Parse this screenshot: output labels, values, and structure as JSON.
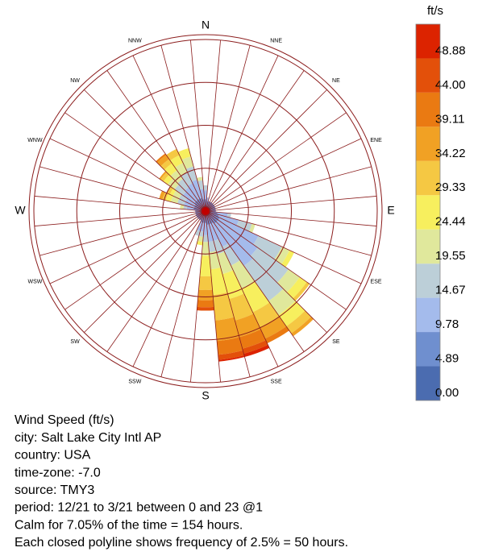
{
  "chart_data": {
    "type": "windrose",
    "directions": [
      "N",
      "NNE",
      "NE",
      "ENE",
      "E",
      "ESE",
      "SE",
      "SSE",
      "S",
      "SSW",
      "SW",
      "WSW",
      "W",
      "WNW",
      "NW",
      "NNW"
    ],
    "rlim": [
      0,
      10
    ],
    "rticks": [
      2.5,
      5,
      7.5,
      10
    ],
    "series": [
      {
        "color": "#4b6cb0",
        "values": [
          0.3,
          0.3,
          0.3,
          0.3,
          0.3,
          0.3,
          0.3,
          0.3,
          0.3,
          0.3,
          0.3,
          0.3,
          0.3,
          0.3,
          0.3,
          0.3,
          0.3,
          0.3,
          0.3,
          0.3,
          0.3,
          0.3,
          0.3,
          0.3,
          0.3,
          0.3,
          0.3,
          0.3,
          0.3,
          0.3,
          0.3,
          0.3,
          0.3,
          0.3,
          0.3,
          0.3
        ]
      },
      {
        "color": "#6f8fcf",
        "values": [
          0.4,
          0.3,
          0.3,
          0.3,
          0.3,
          0.3,
          0.3,
          0.3,
          0.3,
          0.3,
          0.4,
          0.5,
          0.6,
          0.6,
          0.6,
          0.5,
          0.5,
          0.5,
          0.4,
          0.4,
          0.4,
          0.3,
          0.3,
          0.3,
          0.3,
          0.3,
          0.3,
          0.3,
          0.4,
          0.4,
          0.4,
          0.5,
          0.5,
          0.5,
          0.5,
          0.4
        ]
      },
      {
        "color": "#a4bbec",
        "values": [
          0.5,
          0.2,
          0,
          0,
          0,
          0,
          0,
          0,
          0,
          0,
          0.6,
          1.2,
          2.5,
          2.8,
          3.0,
          1.5,
          1.0,
          1.0,
          0.7,
          0.5,
          0.5,
          0,
          0,
          0,
          0,
          0,
          0,
          0,
          0.4,
          0.6,
          0.6,
          0.8,
          0.9,
          1.0,
          1.1,
          0.6
        ]
      },
      {
        "color": "#bccfd8",
        "values": [
          0.3,
          0,
          0,
          0,
          0,
          0,
          0,
          0,
          0,
          0,
          0.2,
          0.8,
          1.5,
          2.2,
          2.5,
          1.2,
          0.8,
          0.6,
          0.4,
          0.3,
          0.3,
          0,
          0,
          0,
          0,
          0,
          0,
          0,
          0.2,
          0.4,
          0.4,
          0.6,
          0.6,
          0.7,
          0.8,
          0.5
        ]
      },
      {
        "color": "#e0e89c",
        "values": [
          0,
          0,
          0,
          0,
          0,
          0,
          0,
          0,
          0,
          0,
          0,
          0.2,
          0.5,
          0.8,
          1.0,
          1.5,
          1.2,
          1.0,
          0.8,
          0.3,
          0,
          0,
          0,
          0,
          0,
          0,
          0,
          0,
          0.2,
          0.4,
          0.4,
          0.5,
          0.6,
          0.6,
          0.6,
          0.2
        ]
      },
      {
        "color": "#f7ef5e",
        "values": [
          0,
          0,
          0,
          0,
          0,
          0,
          0,
          0,
          0,
          0,
          0,
          0,
          0.3,
          0.5,
          0.8,
          1.5,
          1.5,
          1.5,
          1.2,
          0.2,
          0,
          0,
          0,
          0,
          0,
          0,
          0,
          0,
          0,
          0.3,
          0.2,
          0.3,
          0.5,
          0.5,
          0.5,
          0
        ]
      },
      {
        "color": "#f5c843",
        "values": [
          0,
          0,
          0,
          0,
          0,
          0,
          0,
          0,
          0,
          0,
          0,
          0,
          0,
          0.2,
          0.5,
          1.0,
          1.3,
          1.5,
          0.8,
          0,
          0,
          0,
          0,
          0,
          0,
          0,
          0,
          0,
          0,
          0.2,
          0.2,
          0.2,
          0.3,
          0.4,
          0,
          0
        ]
      },
      {
        "color": "#f1a124",
        "values": [
          0,
          0,
          0,
          0,
          0,
          0,
          0,
          0,
          0,
          0,
          0,
          0,
          0,
          0,
          0.2,
          0.7,
          1.0,
          1.2,
          0.6,
          0,
          0,
          0,
          0,
          0,
          0,
          0,
          0,
          0,
          0,
          0.2,
          0,
          0.1,
          0.3,
          0,
          0,
          0
        ]
      },
      {
        "color": "#ea7a12",
        "values": [
          0,
          0,
          0,
          0,
          0,
          0,
          0,
          0,
          0,
          0,
          0,
          0,
          0,
          0,
          0,
          0.3,
          0.7,
          0.8,
          0.4,
          0,
          0,
          0,
          0,
          0,
          0,
          0,
          0,
          0,
          0,
          0,
          0,
          0,
          0.1,
          0,
          0,
          0
        ]
      },
      {
        "color": "#e3500a",
        "values": [
          0,
          0,
          0,
          0,
          0,
          0,
          0,
          0,
          0,
          0,
          0,
          0,
          0,
          0,
          0,
          0,
          0.3,
          0.3,
          0.2,
          0,
          0,
          0,
          0,
          0,
          0,
          0,
          0,
          0,
          0,
          0,
          0,
          0,
          0,
          0,
          0,
          0
        ]
      },
      {
        "color": "#dc2300",
        "values": [
          0,
          0,
          0,
          0,
          0,
          0,
          0,
          0,
          0,
          0,
          0,
          0,
          0,
          0,
          0,
          0,
          0.2,
          0.1,
          0,
          0,
          0,
          0,
          0,
          0,
          0,
          0,
          0,
          0,
          0,
          0,
          0,
          0,
          0,
          0,
          0,
          0
        ]
      }
    ],
    "colorbar": {
      "label": "ft/s",
      "lim": [
        0,
        53.77
      ],
      "ticks": [
        {
          "value": 0,
          "label": "0.00"
        },
        4.89,
        9.78,
        14.67,
        19.55,
        24.44,
        29.33,
        34.22,
        39.11,
        {
          "value": 44,
          "label": "44.00"
        },
        48.88
      ]
    },
    "notes": [
      "Wind Speed (ft/s)",
      "city: Salt Lake City Intl AP",
      "country: USA",
      "time-zone: -7.0",
      "source: TMY3",
      "period: 12/21 to 3/21 between 0 and 23 @1",
      "Calm for 7.05% of the time = 154 hours.",
      "Each closed polyline shows frequency of 2.5% = 50 hours."
    ]
  }
}
